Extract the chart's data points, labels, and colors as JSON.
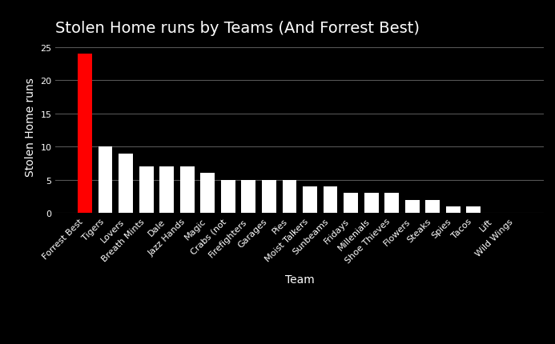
{
  "title": "Stolen Home runs by Teams (And Forrest Best)",
  "xlabel": "Team",
  "ylabel": "Stolen Home runs",
  "categories": [
    "Forrest Best",
    "Tigers",
    "Lovers",
    "Breath Mints",
    "Dale",
    "Jazz Hands",
    "Magic",
    "Crabs (not",
    "Firefighters",
    "Garages",
    "Pies",
    "Moist Talkers",
    "Sunbeams",
    "Fridays",
    "Millenials",
    "Shoe Thieves",
    "Flowers",
    "Steaks",
    "Spies",
    "Tacos",
    "Lift",
    "Wild Wings"
  ],
  "values": [
    24,
    10,
    9,
    7,
    7,
    7,
    6,
    5,
    5,
    5,
    5,
    4,
    4,
    3,
    3,
    3,
    2,
    2,
    1,
    1,
    0,
    0
  ],
  "bar_colors": [
    "#ff0000",
    "#ffffff",
    "#ffffff",
    "#ffffff",
    "#ffffff",
    "#ffffff",
    "#ffffff",
    "#ffffff",
    "#ffffff",
    "#ffffff",
    "#ffffff",
    "#ffffff",
    "#ffffff",
    "#ffffff",
    "#ffffff",
    "#ffffff",
    "#ffffff",
    "#ffffff",
    "#ffffff",
    "#ffffff",
    "#ffffff",
    "#ffffff"
  ],
  "background_color": "#000000",
  "text_color": "#ffffff",
  "grid_color": "#555555",
  "ylim": [
    0,
    26
  ],
  "yticks": [
    0,
    5,
    10,
    15,
    20,
    25
  ],
  "title_fontsize": 14,
  "label_fontsize": 10,
  "tick_fontsize": 8,
  "fig_width": 6.93,
  "fig_height": 4.31,
  "dpi": 100
}
